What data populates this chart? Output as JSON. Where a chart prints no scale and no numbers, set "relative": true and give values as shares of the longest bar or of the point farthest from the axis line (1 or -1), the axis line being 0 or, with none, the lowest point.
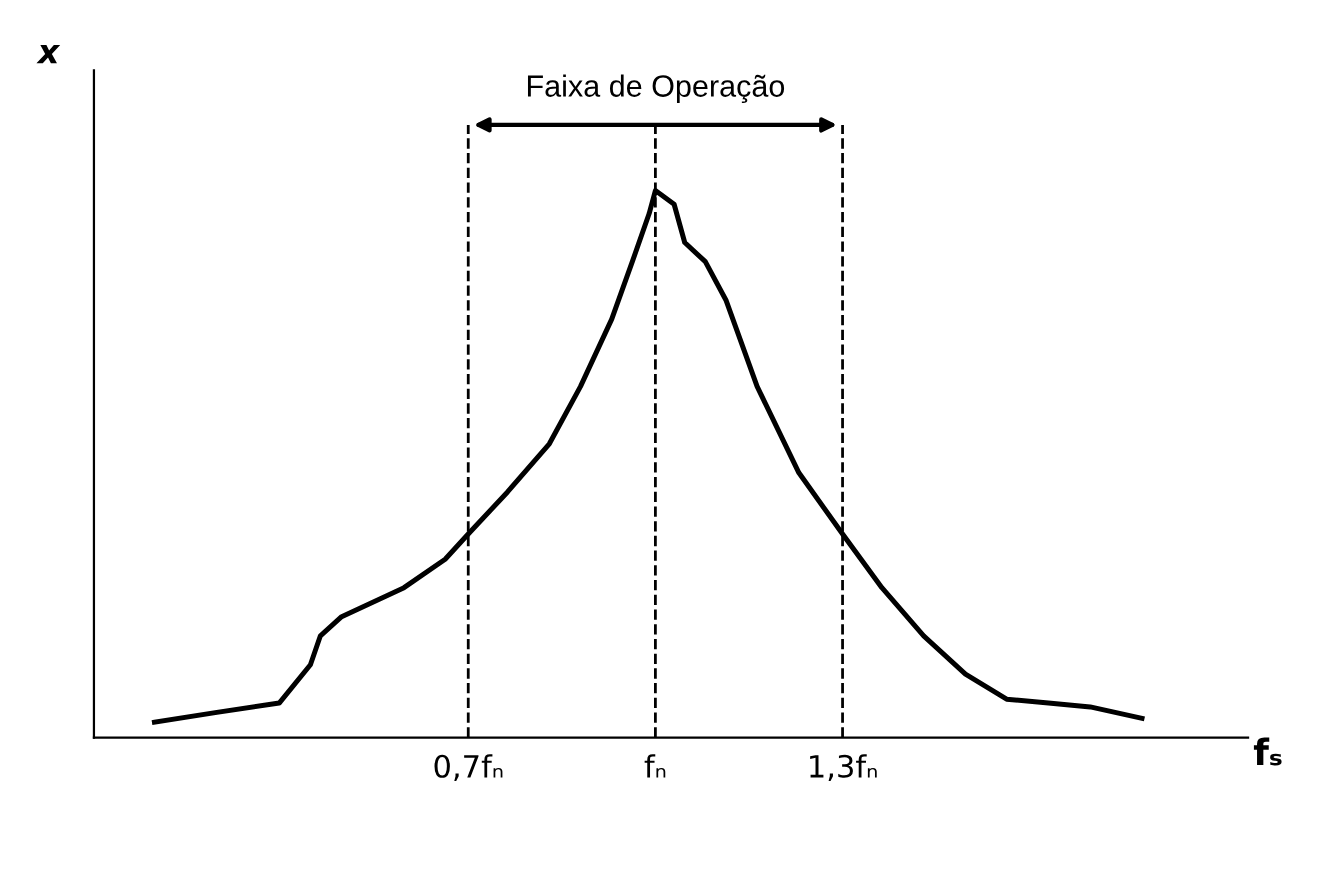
{
  "chart_data": {
    "type": "line",
    "relative": true,
    "xlabel": "fₛ",
    "ylabel": "x",
    "x": [
      0.197,
      0.297,
      0.397,
      0.447,
      0.463,
      0.497,
      0.597,
      0.663,
      0.7,
      0.763,
      0.83,
      0.88,
      0.93,
      0.963,
      0.99,
      1.0,
      1.03,
      1.047,
      1.08,
      1.113,
      1.163,
      1.23,
      1.3,
      1.363,
      1.43,
      1.497,
      1.563,
      1.63,
      1.697,
      1.78
    ],
    "series": [
      {
        "color": "#000000",
        "values": [
          0.028,
          0.046,
          0.063,
          0.133,
          0.186,
          0.221,
          0.274,
          0.326,
          0.372,
          0.449,
          0.537,
          0.642,
          0.765,
          0.87,
          0.958,
          1.0,
          0.975,
          0.905,
          0.87,
          0.8,
          0.642,
          0.484,
          0.372,
          0.274,
          0.186,
          0.116,
          0.07,
          0.063,
          0.056,
          0.035
        ]
      }
    ],
    "xlim": [
      0.1,
      1.95
    ],
    "xticks": [
      {
        "value": 0.7,
        "label": "0,7fₙ"
      },
      {
        "value": 1.0,
        "label": "fₙ"
      },
      {
        "value": 1.3,
        "label": "1,3fₙ"
      }
    ],
    "tick_labels": "x",
    "ref_lines": [
      {
        "axis": "x",
        "value": 0.7,
        "color": "#000000",
        "line_style": "dashed"
      },
      {
        "axis": "x",
        "value": 1.0,
        "color": "#000000",
        "line_style": "dashed"
      },
      {
        "axis": "x",
        "value": 1.3,
        "color": "#000000",
        "line_style": "dashed"
      }
    ],
    "annotations": [
      "Faixa de Operação"
    ],
    "grid": false,
    "marker": "none",
    "line_style": "solid"
  }
}
